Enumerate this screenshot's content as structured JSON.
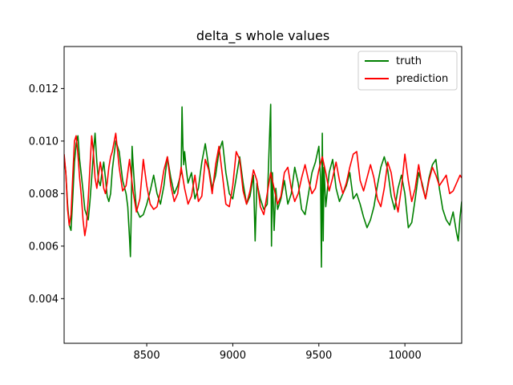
{
  "chart_data": {
    "type": "line",
    "title": "delta_s whole values",
    "xlabel": "",
    "ylabel": "",
    "xlim": [
      8020,
      10330
    ],
    "ylim": [
      0.0023,
      0.0136
    ],
    "x_ticks": [
      8500,
      9000,
      9500,
      10000
    ],
    "x_tick_labels": [
      "8500",
      "9000",
      "9500",
      "10000"
    ],
    "y_ticks": [
      0.004,
      0.006,
      0.008,
      0.01,
      0.012
    ],
    "y_tick_labels": [
      "0.004",
      "0.006",
      "0.008",
      "0.010",
      "0.012"
    ],
    "grid": false,
    "legend_position": "top-right",
    "series": [
      {
        "name": "truth",
        "color": "#008000",
        "x": [
          8020,
          8030,
          8040,
          8050,
          8060,
          8070,
          8080,
          8090,
          8100,
          8110,
          8120,
          8130,
          8140,
          8150,
          8160,
          8170,
          8180,
          8190,
          8200,
          8210,
          8220,
          8230,
          8240,
          8250,
          8260,
          8270,
          8280,
          8290,
          8300,
          8320,
          8340,
          8360,
          8380,
          8390,
          8400,
          8405,
          8410,
          8415,
          8420,
          8430,
          8440,
          8460,
          8480,
          8500,
          8520,
          8540,
          8560,
          8580,
          8600,
          8620,
          8640,
          8660,
          8680,
          8700,
          8705,
          8710,
          8715,
          8720,
          8730,
          8740,
          8760,
          8780,
          8800,
          8820,
          8840,
          8860,
          8880,
          8900,
          8920,
          8940,
          8960,
          8980,
          9000,
          9020,
          9040,
          9060,
          9080,
          9100,
          9120,
          9130,
          9140,
          9160,
          9180,
          9200,
          9210,
          9220,
          9225,
          9230,
          9240,
          9250,
          9260,
          9280,
          9300,
          9320,
          9340,
          9360,
          9380,
          9400,
          9420,
          9440,
          9460,
          9480,
          9500,
          9510,
          9515,
          9520,
          9525,
          9530,
          9540,
          9560,
          9580,
          9600,
          9620,
          9640,
          9660,
          9680,
          9700,
          9720,
          9740,
          9760,
          9780,
          9800,
          9820,
          9840,
          9860,
          9880,
          9900,
          9920,
          9940,
          9960,
          9980,
          10000,
          10020,
          10040,
          10060,
          10080,
          10100,
          10120,
          10140,
          10160,
          10180,
          10200,
          10220,
          10240,
          10260,
          10280,
          10300,
          10310,
          10320,
          10330
        ],
        "values": [
          0.0094,
          0.0088,
          0.0076,
          0.0068,
          0.0066,
          0.0078,
          0.0092,
          0.0099,
          0.0102,
          0.0093,
          0.0087,
          0.0081,
          0.0074,
          0.0072,
          0.007,
          0.0077,
          0.0086,
          0.0095,
          0.0103,
          0.0092,
          0.0085,
          0.0083,
          0.0088,
          0.0092,
          0.0086,
          0.0079,
          0.0077,
          0.008,
          0.0089,
          0.01,
          0.0096,
          0.0085,
          0.008,
          0.0075,
          0.0063,
          0.0056,
          0.0072,
          0.0098,
          0.0092,
          0.0082,
          0.0074,
          0.0071,
          0.0072,
          0.0076,
          0.0081,
          0.0087,
          0.008,
          0.0076,
          0.0083,
          0.0094,
          0.0086,
          0.008,
          0.0083,
          0.0088,
          0.0113,
          0.0098,
          0.0091,
          0.0096,
          0.0089,
          0.0084,
          0.0088,
          0.0078,
          0.0082,
          0.0092,
          0.0099,
          0.009,
          0.0082,
          0.0087,
          0.0096,
          0.01,
          0.0088,
          0.008,
          0.0078,
          0.0086,
          0.0094,
          0.0084,
          0.0076,
          0.0079,
          0.0087,
          0.0062,
          0.0084,
          0.0078,
          0.0074,
          0.0076,
          0.0095,
          0.0114,
          0.006,
          0.0088,
          0.0066,
          0.0082,
          0.0074,
          0.0078,
          0.0085,
          0.0076,
          0.008,
          0.009,
          0.0084,
          0.0074,
          0.0072,
          0.008,
          0.0088,
          0.0092,
          0.0098,
          0.0086,
          0.0052,
          0.0103,
          0.0062,
          0.009,
          0.0075,
          0.0088,
          0.0093,
          0.0082,
          0.0077,
          0.008,
          0.0083,
          0.0088,
          0.0078,
          0.008,
          0.0076,
          0.0071,
          0.0067,
          0.007,
          0.0075,
          0.0083,
          0.009,
          0.0094,
          0.0089,
          0.0079,
          0.0074,
          0.0082,
          0.0087,
          0.008,
          0.0067,
          0.0069,
          0.0078,
          0.0088,
          0.0084,
          0.0078,
          0.0086,
          0.0091,
          0.0093,
          0.0082,
          0.0074,
          0.007,
          0.0068,
          0.0073,
          0.0065,
          0.0062,
          0.0071,
          0.0077
        ]
      },
      {
        "name": "prediction",
        "color": "#ff0000",
        "x": [
          8020,
          8030,
          8040,
          8050,
          8060,
          8070,
          8080,
          8090,
          8100,
          8110,
          8120,
          8130,
          8140,
          8150,
          8160,
          8170,
          8180,
          8190,
          8200,
          8210,
          8220,
          8230,
          8240,
          8250,
          8260,
          8270,
          8280,
          8290,
          8300,
          8320,
          8340,
          8360,
          8380,
          8400,
          8420,
          8440,
          8460,
          8480,
          8500,
          8520,
          8540,
          8560,
          8580,
          8600,
          8620,
          8640,
          8660,
          8680,
          8700,
          8720,
          8740,
          8760,
          8780,
          8800,
          8820,
          8840,
          8860,
          8880,
          8900,
          8920,
          8940,
          8960,
          8980,
          9000,
          9020,
          9040,
          9060,
          9080,
          9100,
          9120,
          9140,
          9160,
          9180,
          9200,
          9220,
          9240,
          9260,
          9280,
          9300,
          9320,
          9340,
          9360,
          9380,
          9400,
          9420,
          9440,
          9460,
          9480,
          9500,
          9520,
          9540,
          9560,
          9580,
          9600,
          9620,
          9640,
          9660,
          9680,
          9700,
          9720,
          9740,
          9760,
          9780,
          9800,
          9820,
          9840,
          9860,
          9880,
          9900,
          9920,
          9940,
          9960,
          9980,
          10000,
          10020,
          10040,
          10060,
          10080,
          10100,
          10120,
          10140,
          10160,
          10180,
          10200,
          10220,
          10240,
          10260,
          10280,
          10300,
          10320,
          10330
        ],
        "values": [
          0.0095,
          0.0088,
          0.0074,
          0.0068,
          0.0072,
          0.0086,
          0.01,
          0.0102,
          0.0095,
          0.0086,
          0.0079,
          0.007,
          0.0064,
          0.0068,
          0.0078,
          0.009,
          0.0102,
          0.0096,
          0.0086,
          0.0082,
          0.0087,
          0.0092,
          0.0088,
          0.0082,
          0.008,
          0.0084,
          0.009,
          0.0094,
          0.0096,
          0.0103,
          0.009,
          0.0081,
          0.0083,
          0.0093,
          0.0081,
          0.0073,
          0.0078,
          0.0093,
          0.0083,
          0.0076,
          0.0074,
          0.0075,
          0.0081,
          0.0089,
          0.0094,
          0.0083,
          0.0077,
          0.008,
          0.009,
          0.0082,
          0.0076,
          0.0079,
          0.0087,
          0.0077,
          0.0079,
          0.0093,
          0.0089,
          0.008,
          0.0091,
          0.0098,
          0.0087,
          0.0076,
          0.0075,
          0.0083,
          0.0096,
          0.0093,
          0.0081,
          0.0076,
          0.0081,
          0.0089,
          0.0085,
          0.0075,
          0.0072,
          0.008,
          0.0088,
          0.0082,
          0.0076,
          0.0079,
          0.0088,
          0.009,
          0.0082,
          0.0077,
          0.008,
          0.0086,
          0.0091,
          0.0085,
          0.008,
          0.0082,
          0.0089,
          0.0094,
          0.0088,
          0.0081,
          0.0086,
          0.0092,
          0.0085,
          0.008,
          0.0084,
          0.009,
          0.0095,
          0.0096,
          0.0085,
          0.0081,
          0.0086,
          0.0091,
          0.0086,
          0.0078,
          0.0075,
          0.0082,
          0.0092,
          0.0088,
          0.0079,
          0.0073,
          0.0082,
          0.0095,
          0.0085,
          0.0077,
          0.0082,
          0.0091,
          0.0083,
          0.0078,
          0.0085,
          0.009,
          0.0087,
          0.0083,
          0.0085,
          0.0087,
          0.008,
          0.0081,
          0.0084,
          0.0087,
          0.0086
        ]
      }
    ]
  }
}
